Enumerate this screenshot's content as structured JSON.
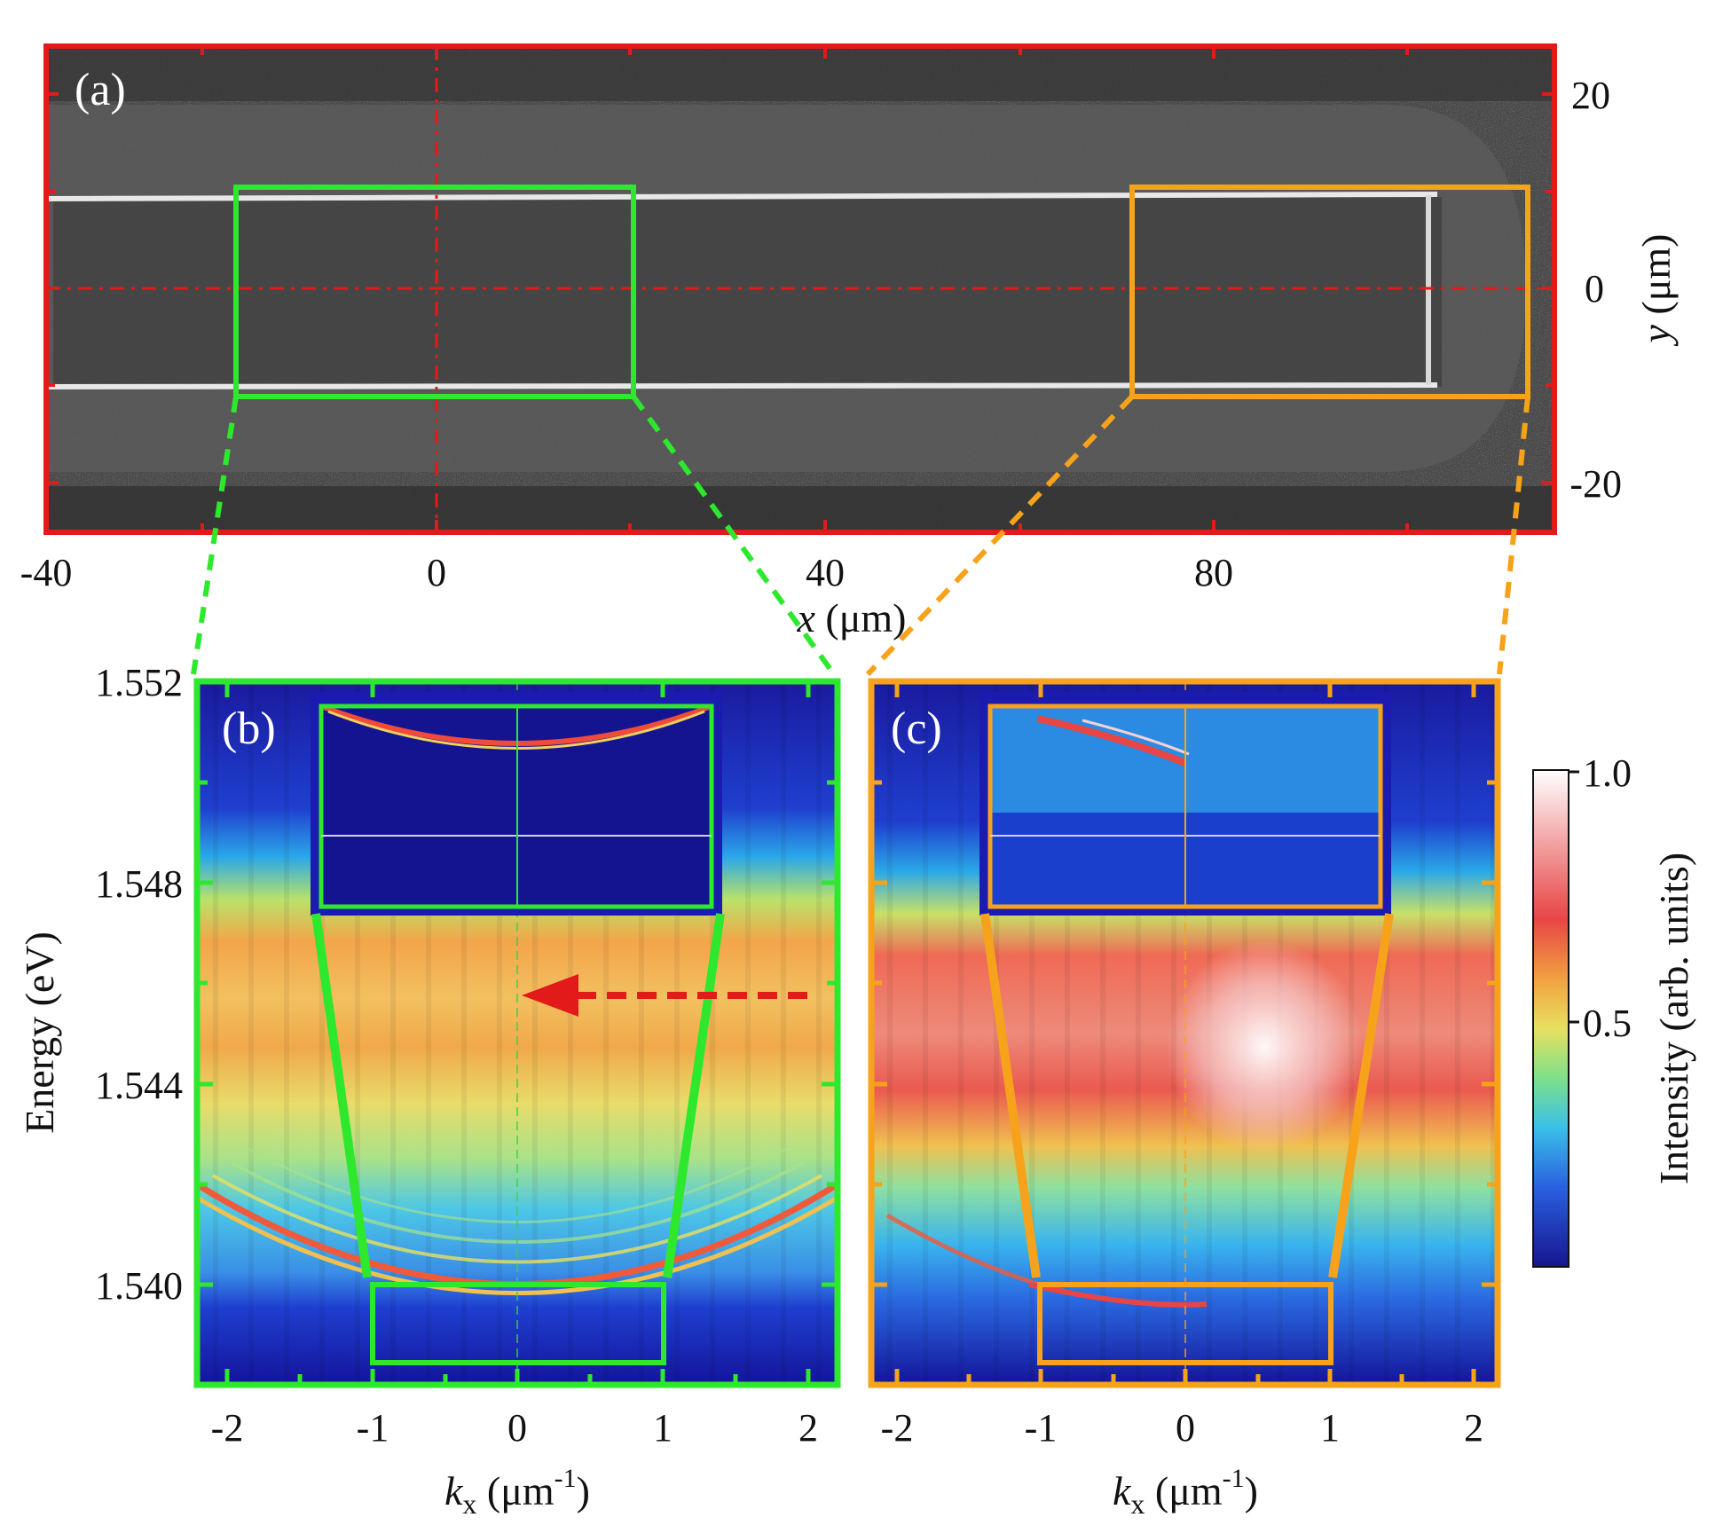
{
  "figure": {
    "panel_a": {
      "label": "(a)",
      "x_ticks": [
        "-40",
        "0",
        "40",
        "80"
      ],
      "y_ticks": [
        "20",
        "0",
        "-20"
      ],
      "x_label_var": "x",
      "x_label_unit": " (μm)",
      "y_label_var": "y",
      "y_label_unit": " (μm)",
      "colors": {
        "frame": "#e21a1a",
        "green_box": "#2ee82e",
        "orange_box": "#f7a21b"
      }
    },
    "panel_b": {
      "label": "(b)",
      "y_ticks": [
        "1.552",
        "1.548",
        "1.544",
        "1.540"
      ],
      "x_ticks": [
        "-2",
        "-1",
        "0",
        "1",
        "2"
      ],
      "y_label": "Energy (eV)",
      "x_label_var": "k",
      "x_label_sub": "x",
      "x_label_unit": " (μm",
      "x_label_sup": "-1",
      "x_label_close": ")"
    },
    "panel_c": {
      "label": "(c)",
      "x_ticks": [
        "-2",
        "-1",
        "0",
        "1",
        "2"
      ],
      "x_label_var": "k",
      "x_label_sub": "x",
      "x_label_unit": " (μm",
      "x_label_sup": "-1",
      "x_label_close": ")"
    },
    "colorbar": {
      "ticks": [
        "1.0",
        "0.5"
      ],
      "label": "Intensity (arb. units)"
    }
  }
}
